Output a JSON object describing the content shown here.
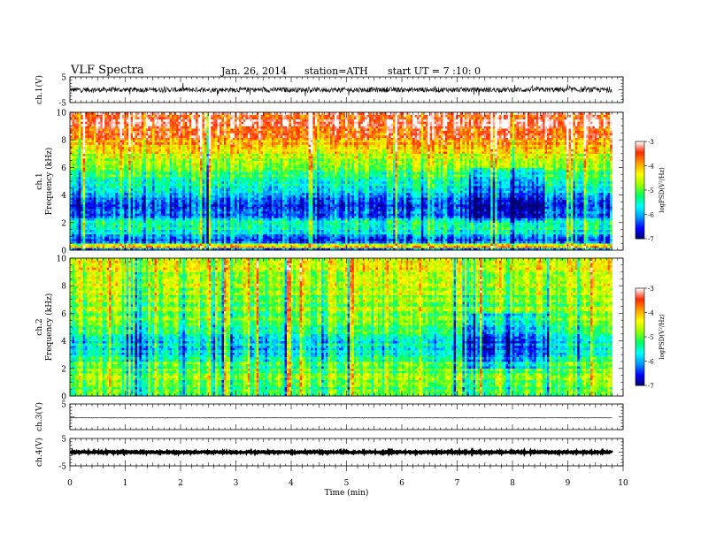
{
  "header": {
    "title": "VLF  Spectra",
    "date": "Jan. 26, 2014",
    "station": "station=ATH",
    "start": "start  UT  =   7 :10: 0"
  },
  "chart_data": [
    {
      "type": "line",
      "panel": "ch1-waveform",
      "ylabel": "ch.1(V)",
      "ylim": [
        -5,
        5
      ],
      "yticks": [
        "5",
        "-5"
      ],
      "series": [
        {
          "description": "noisy waveform around 0 V, amplitude roughly ±1 V with spikes to ±2 V",
          "mean": 0,
          "amplitude": 1.0
        }
      ]
    },
    {
      "type": "heatmap",
      "panel": "ch1-spectrogram",
      "ylabel": "ch.1\nFrequency  (kHz)",
      "ylabel_lines": [
        "ch.1",
        "Frequency  (kHz)"
      ],
      "ylim": [
        0,
        10
      ],
      "yticks": [
        "0",
        "2",
        "4",
        "6",
        "8",
        "10"
      ],
      "xlim": [
        0,
        9.8
      ],
      "colorbar": {
        "label": "logPSD(V²/Hz)",
        "range": [
          -7,
          -3
        ],
        "ticks": [
          "-3",
          "-4",
          "-5",
          "-6",
          "-7"
        ]
      },
      "frequency_profile_kHz": [
        {
          "f": 0.0,
          "v": -6.8
        },
        {
          "f": 0.3,
          "v": -3.6
        },
        {
          "f": 0.6,
          "v": -6.3
        },
        {
          "f": 1.0,
          "v": -6.0
        },
        {
          "f": 1.5,
          "v": -5.5
        },
        {
          "f": 2.0,
          "v": -5.4
        },
        {
          "f": 2.5,
          "v": -6.2
        },
        {
          "f": 3.0,
          "v": -6.5
        },
        {
          "f": 3.5,
          "v": -6.4
        },
        {
          "f": 4.0,
          "v": -6.0
        },
        {
          "f": 4.5,
          "v": -5.7
        },
        {
          "f": 5.0,
          "v": -5.3
        },
        {
          "f": 5.5,
          "v": -5.1
        },
        {
          "f": 6.0,
          "v": -4.8
        },
        {
          "f": 6.5,
          "v": -4.6
        },
        {
          "f": 7.0,
          "v": -4.4
        },
        {
          "f": 7.5,
          "v": -4.1
        },
        {
          "f": 8.0,
          "v": -3.8
        },
        {
          "f": 9.0,
          "v": -3.4
        },
        {
          "f": 10.0,
          "v": -3.3
        }
      ],
      "quiet_interval_min": [
        7.2,
        8.6
      ]
    },
    {
      "type": "heatmap",
      "panel": "ch2-spectrogram",
      "ylabel": "ch.2\nFrequency  (kHz)",
      "ylabel_lines": [
        "ch.2",
        "Frequency  (kHz)"
      ],
      "ylim": [
        0,
        10
      ],
      "yticks": [
        "0",
        "2",
        "4",
        "6",
        "8",
        "10"
      ],
      "xlim": [
        0,
        9.8
      ],
      "colorbar": {
        "label": "logPSD(V²/Hz)",
        "range": [
          -7,
          -3
        ],
        "ticks": [
          "-3",
          "-4",
          "-5",
          "-6",
          "-7"
        ]
      },
      "frequency_profile_kHz": [
        {
          "f": 0.0,
          "v": -5.3
        },
        {
          "f": 0.5,
          "v": -5.0
        },
        {
          "f": 1.0,
          "v": -4.9
        },
        {
          "f": 1.5,
          "v": -4.8
        },
        {
          "f": 2.0,
          "v": -5.0
        },
        {
          "f": 2.5,
          "v": -5.2
        },
        {
          "f": 3.0,
          "v": -5.5
        },
        {
          "f": 3.5,
          "v": -5.7
        },
        {
          "f": 4.0,
          "v": -5.6
        },
        {
          "f": 4.5,
          "v": -5.5
        },
        {
          "f": 5.0,
          "v": -5.2
        },
        {
          "f": 5.5,
          "v": -5.0
        },
        {
          "f": 6.0,
          "v": -4.9
        },
        {
          "f": 7.0,
          "v": -4.8
        },
        {
          "f": 8.0,
          "v": -4.6
        },
        {
          "f": 9.0,
          "v": -4.5
        },
        {
          "f": 10.0,
          "v": -4.5
        }
      ],
      "quiet_interval_min": [
        7.2,
        8.6
      ]
    },
    {
      "type": "line",
      "panel": "ch3-waveform",
      "ylabel": "ch.3(V)",
      "ylim": [
        -5,
        5
      ],
      "yticks": [
        "5"
      ],
      "series": [
        {
          "description": "near-flat trace slightly below 0 V",
          "mean": -0.4,
          "amplitude": 0.08
        }
      ]
    },
    {
      "type": "line",
      "panel": "ch4-waveform",
      "ylabel": "ch.4(V)",
      "ylim": [
        -5,
        5
      ],
      "yticks": [
        "5",
        "-5"
      ],
      "series": [
        {
          "description": "thick flat trace near 0 V",
          "mean": 0,
          "amplitude": 0.25
        }
      ]
    }
  ],
  "xaxis": {
    "label": "Time  (min)",
    "ticks": [
      "0",
      "1",
      "2",
      "3",
      "4",
      "5",
      "6",
      "7",
      "8",
      "9",
      "10"
    ],
    "xlim": [
      0,
      10
    ],
    "data_end": 9.8
  },
  "colors": {
    "colormap": [
      "#00006e",
      "#0000ff",
      "#0096ff",
      "#00ffff",
      "#00ff64",
      "#96ff00",
      "#ffff00",
      "#ffa000",
      "#ff2800",
      "#ffffff"
    ]
  }
}
